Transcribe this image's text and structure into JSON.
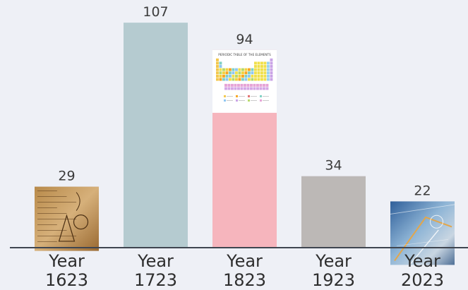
{
  "chart_data": {
    "type": "bar",
    "categories": [
      "Year\n1623",
      "Year\n1723",
      "Year\n1823",
      "Year\n1923",
      "Year\n2023"
    ],
    "values": [
      29,
      107,
      94,
      34,
      22
    ],
    "value_labels": [
      "29",
      "107",
      "94",
      "34",
      "22"
    ],
    "tick_labels": [
      [
        "Year",
        "1623"
      ],
      [
        "Year",
        "1723"
      ],
      [
        "Year",
        "1823"
      ],
      [
        "Year",
        "1923"
      ],
      [
        "Year",
        "2023"
      ]
    ],
    "bar_colors": [
      "#b1aecb",
      "#b5cbd0",
      "#f6b5bd",
      "#bcb8b6",
      "#c8cad6"
    ],
    "images": [
      "manuscript-sketch",
      "none",
      "periodic-table",
      "none",
      "lab-glassware-photo"
    ],
    "ylim": [
      0,
      115
    ],
    "grid": false,
    "legend": "none"
  },
  "embedded_text": {
    "periodic_table_title": "PERIODIC TABLE OF THE ELEMENTS"
  }
}
